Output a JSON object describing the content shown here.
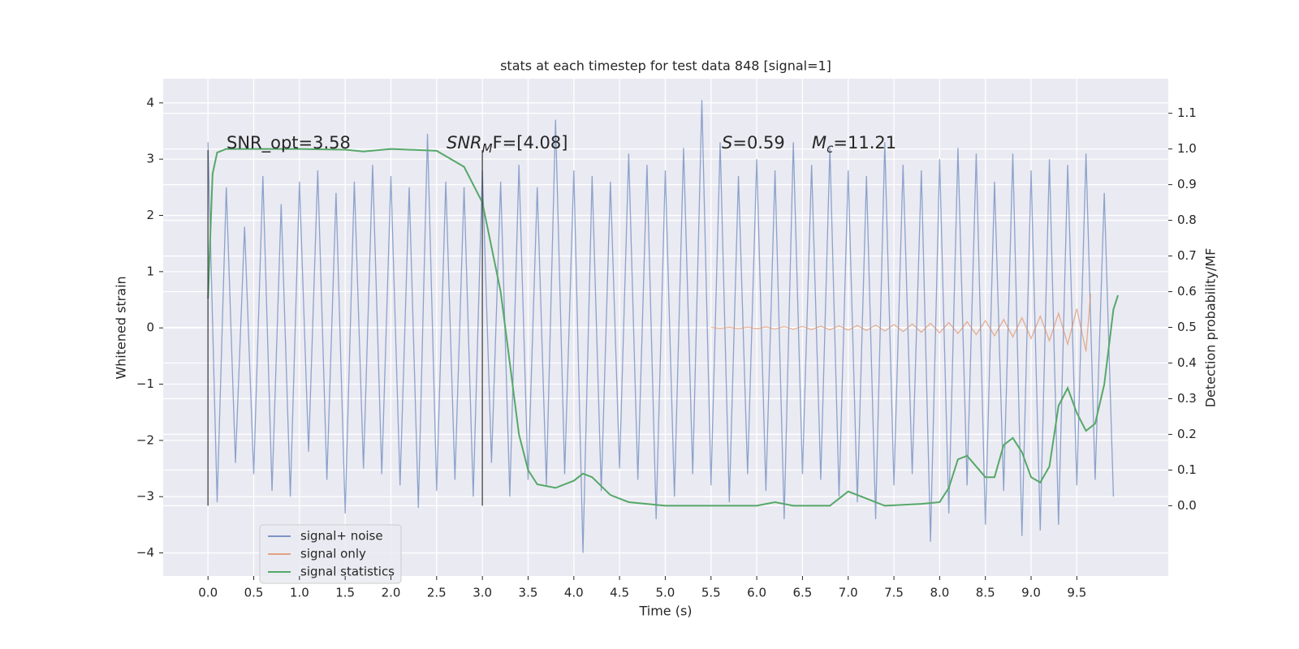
{
  "chart_data": {
    "type": "line",
    "title": "stats at each timestep for test data 848 [signal=1]",
    "xlabel": "Time (s)",
    "ylabel": "Whitened strain",
    "y2label": "Detection probability/MF",
    "xlim": [
      -0.49,
      10.5
    ],
    "ylim": [
      -4.41,
      4.43
    ],
    "y2lim": [
      -0.197,
      1.197
    ],
    "xticks": [
      {
        "value": 0,
        "label": "0.0"
      },
      0.5,
      {
        "value": 1,
        "label": "1.0"
      },
      1.5,
      {
        "value": 2,
        "label": "2.0"
      },
      2.5,
      {
        "value": 3,
        "label": "3.0"
      },
      3.5,
      {
        "value": 4,
        "label": "4.0"
      },
      4.5,
      {
        "value": 5,
        "label": "5.0"
      },
      5.5,
      {
        "value": 6,
        "label": "6.0"
      },
      6.5,
      {
        "value": 7,
        "label": "7.0"
      },
      7.5,
      {
        "value": 8,
        "label": "8.0"
      },
      8.5,
      {
        "value": 9,
        "label": "9.0"
      },
      9.5
    ],
    "yticks": [
      {
        "value": -4,
        "label": "−4"
      },
      {
        "value": -3,
        "label": "−3"
      },
      {
        "value": -2,
        "label": "−2"
      },
      {
        "value": -1,
        "label": "−1"
      },
      0,
      1,
      2,
      3,
      4
    ],
    "y2ticks": [
      {
        "value": 0,
        "label": "0.0"
      },
      0.1,
      0.2,
      0.3,
      0.4,
      0.5,
      0.6,
      0.7,
      0.8,
      0.9,
      {
        "value": 1,
        "label": "1.0"
      },
      1.1
    ],
    "grid": true,
    "legend": "lower left",
    "series": [
      {
        "name": "signal+ noise",
        "color": "#4c72b0",
        "x": [
          0.0,
          0.1,
          0.2,
          0.3,
          0.4,
          0.5,
          0.6,
          0.7,
          0.8,
          0.9,
          1.0,
          1.1,
          1.2,
          1.3,
          1.4,
          1.5,
          1.6,
          1.7,
          1.8,
          1.9,
          2.0,
          2.1,
          2.2,
          2.3,
          2.4,
          2.5,
          2.6,
          2.7,
          2.8,
          2.9,
          3.0,
          3.1,
          3.2,
          3.3,
          3.4,
          3.5,
          3.6,
          3.7,
          3.8,
          3.9,
          4.0,
          4.1,
          4.2,
          4.3,
          4.4,
          4.5,
          4.6,
          4.7,
          4.8,
          4.9,
          5.0,
          5.1,
          5.2,
          5.3,
          5.4,
          5.5,
          5.6,
          5.7,
          5.8,
          5.9,
          6.0,
          6.1,
          6.2,
          6.3,
          6.4,
          6.5,
          6.6,
          6.7,
          6.8,
          6.9,
          7.0,
          7.1,
          7.2,
          7.3,
          7.4,
          7.5,
          7.6,
          7.7,
          7.8,
          7.9,
          8.0,
          8.1,
          8.2,
          8.3,
          8.4,
          8.5,
          8.6,
          8.7,
          8.8,
          8.9,
          9.0,
          9.1,
          9.2,
          9.3,
          9.4,
          9.5,
          9.6,
          9.7,
          9.8,
          9.9
        ],
        "values": [
          3.3,
          -3.1,
          2.5,
          -2.4,
          1.8,
          -2.6,
          2.7,
          -2.9,
          2.2,
          -3.0,
          2.6,
          -2.2,
          2.8,
          -2.7,
          2.4,
          -3.3,
          2.6,
          -2.5,
          2.9,
          -2.6,
          2.7,
          -2.8,
          2.5,
          -3.2,
          3.45,
          -2.9,
          2.6,
          -2.7,
          2.5,
          -3.0,
          2.8,
          -2.4,
          2.6,
          -3.0,
          2.9,
          -2.7,
          2.5,
          -2.8,
          3.7,
          -2.6,
          2.8,
          -4.0,
          2.7,
          -2.9,
          2.6,
          -2.5,
          3.1,
          -2.7,
          2.9,
          -3.4,
          2.8,
          -3.0,
          3.2,
          -2.6,
          4.05,
          -2.8,
          3.3,
          -3.1,
          2.7,
          -2.6,
          3.0,
          -2.9,
          2.8,
          -3.4,
          3.3,
          -2.6,
          2.9,
          -2.7,
          3.2,
          -3.0,
          2.8,
          -3.1,
          2.7,
          -3.4,
          3.3,
          -2.8,
          2.9,
          -2.6,
          2.8,
          -3.8,
          3.0,
          -3.3,
          3.2,
          -2.8,
          3.1,
          -3.5,
          2.6,
          -2.9,
          3.1,
          -3.7,
          2.8,
          -3.6,
          3.0,
          -3.5,
          2.9,
          -2.8,
          3.1,
          -2.7,
          2.4,
          -3.0
        ]
      },
      {
        "name": "signal only",
        "color": "#dd8452",
        "x": [
          5.5,
          5.6,
          5.7,
          5.8,
          5.9,
          6.0,
          6.1,
          6.2,
          6.3,
          6.4,
          6.5,
          6.6,
          6.7,
          6.8,
          6.9,
          7.0,
          7.1,
          7.2,
          7.3,
          7.4,
          7.5,
          7.6,
          7.7,
          7.8,
          7.9,
          8.0,
          8.1,
          8.2,
          8.3,
          8.4,
          8.5,
          8.6,
          8.7,
          8.8,
          8.9,
          9.0,
          9.1,
          9.2,
          9.3,
          9.4,
          9.5,
          9.6,
          9.65
        ],
        "values": [
          0.01,
          -0.01,
          0.012,
          -0.013,
          0.015,
          -0.016,
          0.018,
          -0.02,
          0.022,
          -0.024,
          0.026,
          -0.028,
          0.03,
          -0.033,
          0.036,
          -0.039,
          0.042,
          -0.046,
          0.05,
          -0.055,
          0.06,
          -0.065,
          0.07,
          -0.076,
          0.082,
          -0.088,
          0.095,
          -0.1,
          0.11,
          -0.12,
          0.13,
          -0.14,
          0.15,
          -0.16,
          0.18,
          -0.19,
          0.21,
          -0.23,
          0.26,
          -0.29,
          0.34,
          -0.42,
          0.6
        ]
      },
      {
        "name": "signal statistics",
        "color": "#55a868",
        "axis": "y2",
        "x": [
          0.0,
          0.05,
          0.1,
          0.2,
          0.5,
          1.0,
          1.5,
          1.7,
          2.0,
          2.5,
          2.8,
          3.0,
          3.2,
          3.4,
          3.5,
          3.6,
          3.8,
          4.0,
          4.1,
          4.2,
          4.4,
          4.6,
          5.0,
          5.5,
          6.0,
          6.2,
          6.4,
          6.8,
          7.0,
          7.2,
          7.4,
          7.8,
          8.0,
          8.1,
          8.2,
          8.3,
          8.5,
          8.6,
          8.7,
          8.8,
          8.9,
          9.0,
          9.1,
          9.2,
          9.3,
          9.4,
          9.5,
          9.6,
          9.7,
          9.8,
          9.9,
          9.95
        ],
        "values": [
          0.58,
          0.93,
          0.99,
          1.0,
          1.0,
          1.0,
          0.998,
          0.993,
          1.0,
          0.995,
          0.95,
          0.85,
          0.6,
          0.2,
          0.1,
          0.06,
          0.05,
          0.07,
          0.09,
          0.08,
          0.03,
          0.01,
          0.0,
          0.0,
          0.0,
          0.01,
          0.0,
          0.0,
          0.04,
          0.02,
          0.0,
          0.005,
          0.01,
          0.05,
          0.13,
          0.14,
          0.08,
          0.08,
          0.17,
          0.19,
          0.15,
          0.08,
          0.065,
          0.11,
          0.28,
          0.33,
          0.26,
          0.21,
          0.23,
          0.34,
          0.55,
          0.59
        ]
      }
    ],
    "vlines": [
      {
        "x": 0,
        "ymin": -3.16,
        "ymax": 3.16
      },
      {
        "x": 3.0,
        "ymin": -3.16,
        "ymax": 3.16
      }
    ],
    "annotations": {
      "snr_opt": "SNR_opt=3.58",
      "snr_mf": {
        "italic": "SNR",
        "sub": "M",
        "rest": "F=[4.08]"
      },
      "s": {
        "italic": "S",
        "rest": "=0.59"
      },
      "mc": {
        "italic": "M",
        "sub": "c",
        "rest": "=11.21"
      }
    }
  }
}
